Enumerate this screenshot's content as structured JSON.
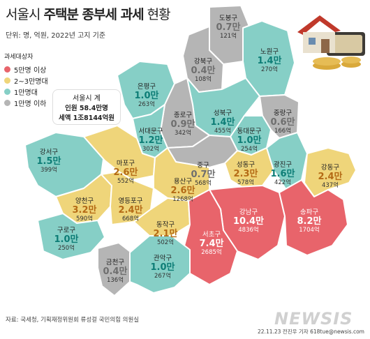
{
  "title": {
    "light": "서울시",
    "bold": "주택분 종부세 과세",
    "end": "현황"
  },
  "unit_note": "단위: 명, 억원, 2022년 고지 기준",
  "legend": {
    "title": "과세대상자",
    "items": [
      {
        "label": "5만명 이상",
        "color": "#e8646b"
      },
      {
        "label": "2~3만명대",
        "color": "#efd57a"
      },
      {
        "label": "1만명대",
        "color": "#86cfc6"
      },
      {
        "label": "1만명 이하",
        "color": "#b5b5b5"
      }
    ]
  },
  "callout": {
    "line1": "서울시 계",
    "line2": "인원 58.4만명",
    "line3": "세액 1조8144억원"
  },
  "districts": [
    {
      "name": "도봉구",
      "people": "0.7만",
      "tax": "121억",
      "color": "#b5b5b5"
    },
    {
      "name": "노원구",
      "people": "1.4만",
      "tax": "270억",
      "color": "#86cfc6"
    },
    {
      "name": "강북구",
      "people": "0.4만",
      "tax": "108억",
      "color": "#b5b5b5"
    },
    {
      "name": "은평구",
      "people": "1.0만",
      "tax": "263억",
      "color": "#86cfc6"
    },
    {
      "name": "성북구",
      "people": "1.4만",
      "tax": "455억",
      "color": "#86cfc6"
    },
    {
      "name": "종로구",
      "people": "0.9만",
      "tax": "342억",
      "color": "#b5b5b5"
    },
    {
      "name": "중랑구",
      "people": "0.6만",
      "tax": "166억",
      "color": "#b5b5b5"
    },
    {
      "name": "서대문구",
      "people": "1.2만",
      "tax": "302억",
      "color": "#86cfc6"
    },
    {
      "name": "동대문구",
      "people": "1.0만",
      "tax": "254억",
      "color": "#86cfc6"
    },
    {
      "name": "강서구",
      "people": "1.5만",
      "tax": "399억",
      "color": "#86cfc6"
    },
    {
      "name": "마포구",
      "people": "2.6만",
      "tax": "552억",
      "color": "#efd57a"
    },
    {
      "name": "중구",
      "people": "0.7만",
      "tax": "568억",
      "color": "#b5b5b5"
    },
    {
      "name": "성동구",
      "people": "2.3만",
      "tax": "578억",
      "color": "#efd57a"
    },
    {
      "name": "광진구",
      "people": "1.6만",
      "tax": "422억",
      "color": "#86cfc6"
    },
    {
      "name": "강동구",
      "people": "2.4만",
      "tax": "437억",
      "color": "#efd57a"
    },
    {
      "name": "용산구",
      "people": "2.6만",
      "tax": "1268억",
      "color": "#efd57a"
    },
    {
      "name": "양천구",
      "people": "3.2만",
      "tax": "590억",
      "color": "#efd57a"
    },
    {
      "name": "영등포구",
      "people": "2.4만",
      "tax": "668억",
      "color": "#efd57a"
    },
    {
      "name": "강남구",
      "people": "10.4만",
      "tax": "4836억",
      "color": "#e8646b"
    },
    {
      "name": "송파구",
      "people": "8.2만",
      "tax": "1704억",
      "color": "#e8646b"
    },
    {
      "name": "동작구",
      "people": "2.1만",
      "tax": "502억",
      "color": "#efd57a"
    },
    {
      "name": "서초구",
      "people": "7.4만",
      "tax": "2685억",
      "color": "#e8646b"
    },
    {
      "name": "구로구",
      "people": "1.0만",
      "tax": "250억",
      "color": "#86cfc6"
    },
    {
      "name": "금천구",
      "people": "0.4만",
      "tax": "136억",
      "color": "#b5b5b5"
    },
    {
      "name": "관악구",
      "people": "1.0만",
      "tax": "267억",
      "color": "#86cfc6"
    }
  ],
  "source": "자료: 국세청, 기획재정위원회 류성걸 국민의힘 의원실",
  "credit": "22.11.23 전진우 기자 618tue@newsis.com",
  "watermark": "NEWSIS"
}
